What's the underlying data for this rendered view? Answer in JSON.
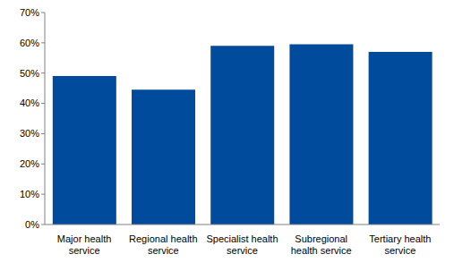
{
  "chart_data": {
    "type": "bar",
    "categories": [
      "Major health service",
      "Regional health service",
      "Specialist health service",
      "Subregional health service",
      "Tertiary health service"
    ],
    "values": [
      49,
      44.5,
      59,
      59.5,
      57
    ],
    "color": "#004b9b",
    "ylim": [
      0,
      70
    ],
    "yticks": [
      {
        "value": 0,
        "label": "0%"
      },
      {
        "value": 10,
        "label": "10%"
      },
      {
        "value": 20,
        "label": "20%"
      },
      {
        "value": 30,
        "label": "30%"
      },
      {
        "value": 40,
        "label": "40%"
      },
      {
        "value": 50,
        "label": "50%"
      },
      {
        "value": 60,
        "label": "60%"
      },
      {
        "value": 70,
        "label": "70%"
      }
    ],
    "grid": false
  }
}
